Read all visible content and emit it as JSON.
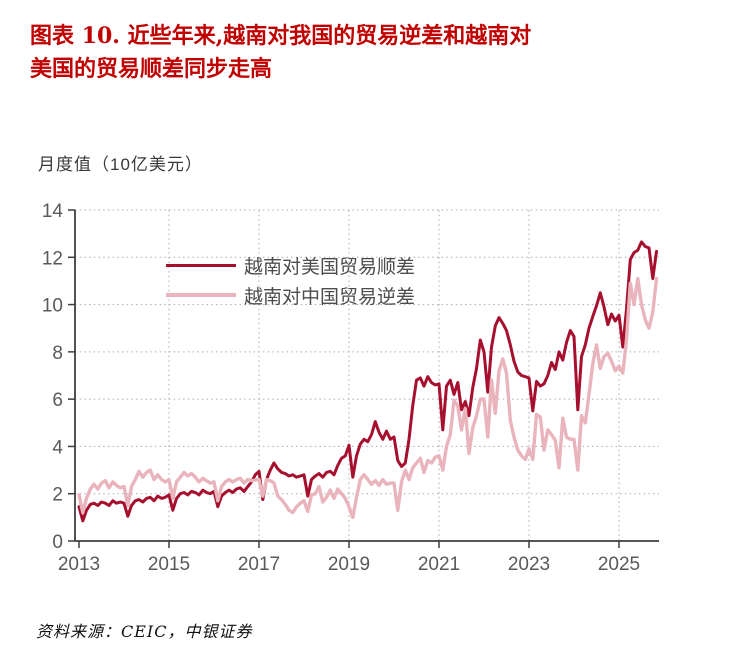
{
  "title": {
    "line1": "图表 10. 近些年来,越南对我国的贸易逆差和越南对",
    "line2": "美国的贸易顺差同步走高"
  },
  "subtitle": "月度值（10亿美元）",
  "source": "资料来源：CEIC，中银证券",
  "colors": {
    "title_red": "#C00000",
    "us_line": "#A6102E",
    "cn_line": "#E9B4BB",
    "axis": "#3f3f3f",
    "tick_label": "#595959",
    "grid": "#ababab"
  },
  "chart_data": {
    "type": "line",
    "title": "越南对美国贸易顺差与越南对中国贸易逆差",
    "unit_note": "月度值（10亿美元）",
    "frequency": "monthly",
    "start": "2013-01",
    "end": "2025-11",
    "x_tick_years": [
      2013,
      2015,
      2017,
      2019,
      2021,
      2023,
      2025
    ],
    "x_tick_labels": [
      "2013",
      "2015",
      "2017",
      "2019",
      "2021",
      "2023",
      "2025"
    ],
    "y_ticks": [
      0,
      2,
      4,
      6,
      8,
      10,
      12,
      14
    ],
    "ylim": [
      0,
      14
    ],
    "grid": "dotted",
    "legend_position": "inside-top-left",
    "series": [
      {
        "name": "越南对美国贸易顺差",
        "color_key": "us_line",
        "values": [
          1.45,
          0.85,
          1.3,
          1.55,
          1.6,
          1.5,
          1.65,
          1.6,
          1.5,
          1.7,
          1.6,
          1.65,
          1.6,
          1.05,
          1.5,
          1.7,
          1.75,
          1.65,
          1.8,
          1.85,
          1.7,
          1.9,
          1.8,
          1.85,
          1.95,
          1.3,
          1.8,
          2.0,
          2.05,
          1.95,
          2.1,
          2.05,
          1.95,
          2.15,
          2.05,
          2.0,
          2.1,
          1.45,
          1.9,
          2.05,
          2.15,
          2.05,
          2.2,
          2.25,
          2.1,
          2.3,
          2.5,
          2.8,
          2.95,
          1.75,
          2.6,
          3.0,
          3.3,
          3.05,
          2.9,
          2.85,
          2.75,
          2.8,
          2.7,
          2.75,
          2.8,
          1.9,
          2.6,
          2.75,
          2.85,
          2.7,
          2.9,
          2.95,
          2.8,
          3.2,
          3.5,
          3.6,
          4.05,
          2.7,
          3.6,
          4.1,
          4.3,
          4.2,
          4.5,
          5.05,
          4.6,
          4.3,
          4.65,
          4.3,
          4.4,
          3.4,
          3.15,
          3.3,
          4.3,
          5.75,
          6.8,
          6.9,
          6.55,
          6.95,
          6.7,
          6.6,
          6.65,
          4.7,
          6.55,
          6.8,
          6.2,
          6.7,
          5.55,
          5.9,
          5.3,
          6.5,
          7.3,
          8.5,
          8.0,
          6.3,
          8.2,
          9.1,
          9.45,
          9.2,
          8.9,
          8.3,
          7.6,
          7.15,
          7.0,
          6.95,
          6.9,
          5.5,
          6.75,
          6.55,
          6.65,
          7.0,
          7.55,
          7.25,
          8.0,
          7.65,
          8.4,
          8.9,
          8.65,
          5.55,
          7.8,
          8.3,
          9.0,
          9.5,
          9.95,
          10.5,
          9.9,
          9.15,
          9.6,
          9.3,
          9.55,
          8.2,
          9.8,
          11.9,
          12.2,
          12.3,
          12.65,
          12.45,
          12.4,
          11.1,
          12.25
        ]
      },
      {
        "name": "越南对中国贸易逆差",
        "color_key": "cn_line",
        "values": [
          1.95,
          1.2,
          1.8,
          2.2,
          2.4,
          2.2,
          2.45,
          2.55,
          2.25,
          2.5,
          2.35,
          2.25,
          2.3,
          1.5,
          2.3,
          2.6,
          2.95,
          2.7,
          2.9,
          3.0,
          2.6,
          2.8,
          2.6,
          2.5,
          2.6,
          1.8,
          2.5,
          2.7,
          2.9,
          2.75,
          2.85,
          2.7,
          2.5,
          2.65,
          2.55,
          2.45,
          2.5,
          1.7,
          2.3,
          2.5,
          2.6,
          2.5,
          2.6,
          2.65,
          2.45,
          2.6,
          2.55,
          2.58,
          2.6,
          1.9,
          2.6,
          2.55,
          2.45,
          1.9,
          1.75,
          1.55,
          1.3,
          1.2,
          1.45,
          1.6,
          1.7,
          1.25,
          1.95,
          2.0,
          2.3,
          1.65,
          1.85,
          2.15,
          1.8,
          2.2,
          2.0,
          1.8,
          1.45,
          1.0,
          1.85,
          2.6,
          2.8,
          2.6,
          2.4,
          2.55,
          2.35,
          2.6,
          2.4,
          2.45,
          2.45,
          1.3,
          2.5,
          3.0,
          2.6,
          3.1,
          3.3,
          3.5,
          2.9,
          3.4,
          3.3,
          3.55,
          3.6,
          3.0,
          4.0,
          4.5,
          5.95,
          5.7,
          4.7,
          5.6,
          3.7,
          4.8,
          5.3,
          6.0,
          6.0,
          4.4,
          6.8,
          5.4,
          7.2,
          7.7,
          7.1,
          5.1,
          4.4,
          3.85,
          3.6,
          3.45,
          3.9,
          3.45,
          5.35,
          5.25,
          3.85,
          4.7,
          4.5,
          4.25,
          3.1,
          5.2,
          4.4,
          4.3,
          4.3,
          3.0,
          5.3,
          5.0,
          6.2,
          7.5,
          8.3,
          7.3,
          7.8,
          7.95,
          7.6,
          7.2,
          7.4,
          7.1,
          8.5,
          10.9,
          10.0,
          11.1,
          10.0,
          9.35,
          9.0,
          9.7,
          11.1
        ]
      }
    ]
  }
}
